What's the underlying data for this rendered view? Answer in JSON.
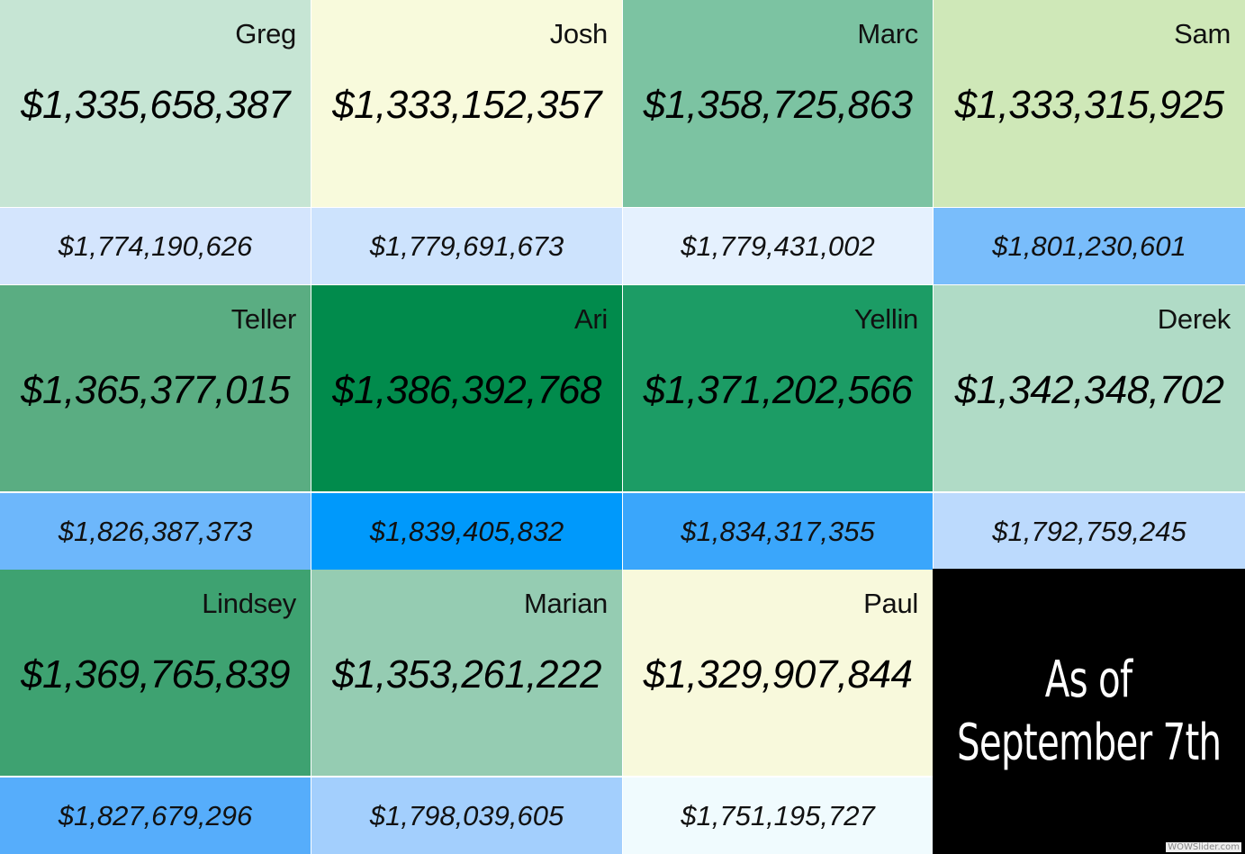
{
  "panels": [
    {
      "name": "Greg",
      "primary": "$1,335,658,387",
      "secondary": "$1,774,190,626",
      "primary_color": "#c6e5d4",
      "secondary_color": "#d4e5fd"
    },
    {
      "name": "Josh",
      "primary": "$1,333,152,357",
      "secondary": "$1,779,691,673",
      "primary_color": "#f8fadc",
      "secondary_color": "#cde3fd"
    },
    {
      "name": "Marc",
      "primary": "$1,358,725,863",
      "secondary": "$1,779,431,002",
      "primary_color": "#7cc3a2",
      "secondary_color": "#e5f1fe"
    },
    {
      "name": "Sam",
      "primary": "$1,333,315,925",
      "secondary": "$1,801,230,601",
      "primary_color": "#cfe8b8",
      "secondary_color": "#79bdfb"
    },
    {
      "name": "Teller",
      "primary": "$1,365,377,015",
      "secondary": "$1,826,387,373",
      "primary_color": "#5aad82",
      "secondary_color": "#6db7fb"
    },
    {
      "name": "Ari",
      "primary": "$1,386,392,768",
      "secondary": "$1,839,405,832",
      "primary_color": "#018b4c",
      "secondary_color": "#0099fb"
    },
    {
      "name": "Yellin",
      "primary": "$1,371,202,566",
      "secondary": "$1,834,317,355",
      "primary_color": "#1c9c65",
      "secondary_color": "#3aa6fb"
    },
    {
      "name": "Derek",
      "primary": "$1,342,348,702",
      "secondary": "$1,792,759,245",
      "primary_color": "#b0dbc6",
      "secondary_color": "#bcdafd"
    },
    {
      "name": "Lindsey",
      "primary": "$1,369,765,839",
      "secondary": "$1,827,679,296",
      "primary_color": "#3ea271",
      "secondary_color": "#56adfb"
    },
    {
      "name": "Marian",
      "primary": "$1,353,261,222",
      "secondary": "$1,798,039,605",
      "primary_color": "#95ccb2",
      "secondary_color": "#a3cffd"
    },
    {
      "name": "Paul",
      "primary": "$1,329,907,844",
      "secondary": "$1,751,195,727",
      "primary_color": "#f8f9dc",
      "secondary_color": "#f0fbfe"
    }
  ],
  "as_of": {
    "line1": "As of",
    "line2": "September 7th"
  },
  "watermark": "WOWSlider.com"
}
